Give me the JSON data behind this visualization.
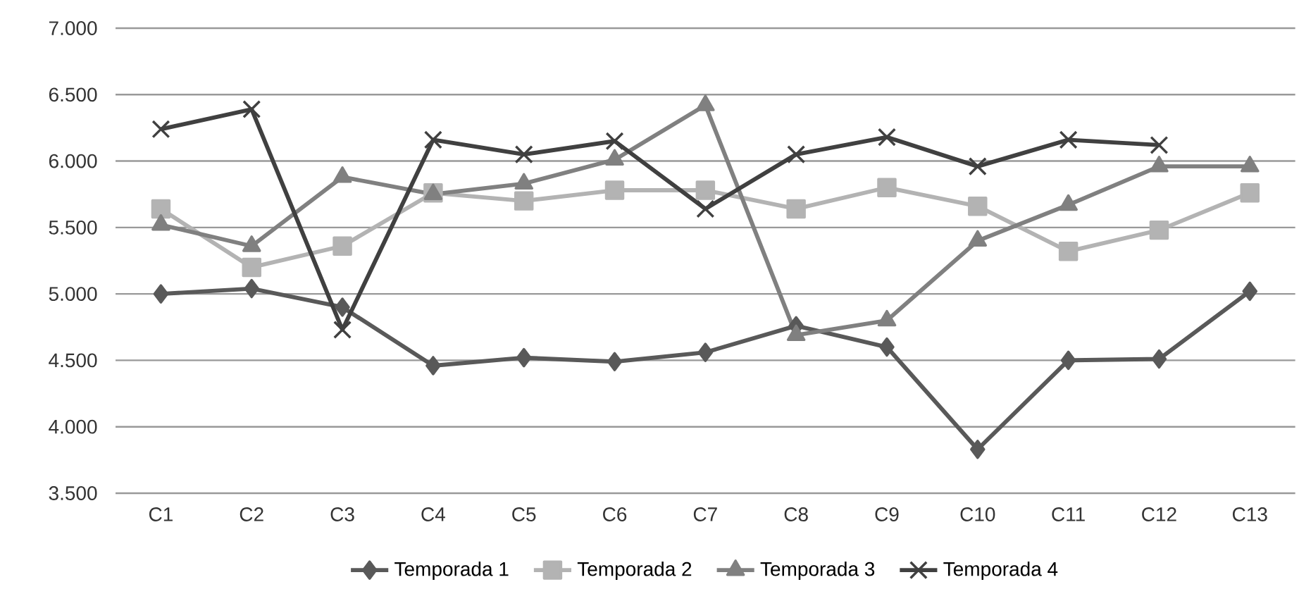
{
  "chart_data": {
    "type": "line",
    "categories": [
      "C1",
      "C2",
      "C3",
      "C4",
      "C5",
      "C6",
      "C7",
      "C8",
      "C9",
      "C10",
      "C11",
      "C12",
      "C13"
    ],
    "series": [
      {
        "name": "Temporada 1",
        "color": "#595959",
        "marker": "diamond",
        "values": [
          5000,
          5040,
          4900,
          4460,
          4520,
          4490,
          4560,
          4760,
          4600,
          3830,
          4500,
          4510,
          5020
        ]
      },
      {
        "name": "Temporada 2",
        "color": "#b3b3b3",
        "marker": "square",
        "values": [
          5640,
          5200,
          5360,
          5760,
          5700,
          5780,
          5780,
          5640,
          5800,
          5660,
          5320,
          5480,
          5760
        ]
      },
      {
        "name": "Temporada 3",
        "color": "#808080",
        "marker": "triangle",
        "values": [
          5520,
          5360,
          5880,
          5750,
          5830,
          6010,
          6420,
          4690,
          4800,
          5400,
          5670,
          5960,
          5960
        ]
      },
      {
        "name": "Temporada 4",
        "color": "#404040",
        "marker": "cross",
        "values": [
          6240,
          6390,
          4730,
          6160,
          6050,
          6150,
          5640,
          6050,
          6180,
          5960,
          6160,
          6120,
          null
        ]
      }
    ],
    "ylim": [
      3500,
      7000
    ],
    "yticks": [
      {
        "value": 3500,
        "label": "3.500"
      },
      {
        "value": 4000,
        "label": "4.000"
      },
      {
        "value": 4500,
        "label": "4.500"
      },
      {
        "value": 5000,
        "label": "5.000"
      },
      {
        "value": 5500,
        "label": "5.500"
      },
      {
        "value": 6000,
        "label": "6.000"
      },
      {
        "value": 6500,
        "label": "6.500"
      },
      {
        "value": 7000,
        "label": "7.000"
      }
    ],
    "grid": "y",
    "legend": "bottom"
  }
}
